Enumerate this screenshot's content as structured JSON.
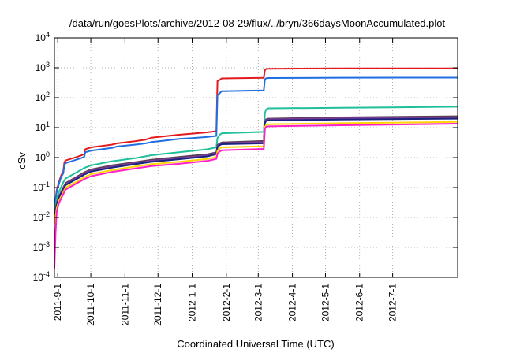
{
  "chart_data": {
    "type": "line",
    "title": "/data/run/goesPlots/archive/2012-08-29/flux/../bryn/366daysMoonAccumulated.plot",
    "xlabel": "Coordinated Universal Time (UTC)",
    "ylabel": "cSv",
    "yscale": "log",
    "ylim": [
      0.0001,
      10000
    ],
    "xlim": [
      "2011-08-29",
      "2012-08-29"
    ],
    "grid": true,
    "y_ticks": [
      {
        "value": 0.0001,
        "base": "10",
        "exp": "-4"
      },
      {
        "value": 0.001,
        "base": "10",
        "exp": "-3"
      },
      {
        "value": 0.01,
        "base": "10",
        "exp": "-2"
      },
      {
        "value": 0.1,
        "base": "10",
        "exp": "-1"
      },
      {
        "value": 1,
        "base": "10",
        "exp": "0"
      },
      {
        "value": 10,
        "base": "10",
        "exp": "1"
      },
      {
        "value": 100,
        "base": "10",
        "exp": "2"
      },
      {
        "value": 1000,
        "base": "10",
        "exp": "3"
      },
      {
        "value": 10000,
        "base": "10",
        "exp": "4"
      }
    ],
    "x_ticks": [
      "2011-9-1",
      "2011-10-1",
      "2011-11-1",
      "2011-12-1",
      "2012-1-1",
      "2012-2-1",
      "2012-3-1",
      "2012-4-1",
      "2012-5-1",
      "2012-6-1",
      "2012-7-1"
    ],
    "series": [
      {
        "color": "#e41a1c",
        "x": [
          "2011-08-29",
          "2011-08-31",
          "2011-09-02",
          "2011-09-04",
          "2011-09-06",
          "2011-09-07",
          "2011-09-08",
          "2011-09-20",
          "2011-09-25",
          "2011-09-26",
          "2011-10-01",
          "2011-10-20",
          "2011-10-25",
          "2011-11-10",
          "2011-11-20",
          "2011-11-25",
          "2011-12-10",
          "2011-12-20",
          "2012-01-01",
          "2012-01-15",
          "2012-01-23",
          "2012-01-24",
          "2012-01-26",
          "2012-01-27",
          "2012-01-28",
          "2012-03-06",
          "2012-03-07",
          "2012-03-08",
          "2012-03-10",
          "2012-05-15",
          "2012-08-29"
        ],
        "y": [
          0.02,
          0.08,
          0.15,
          0.25,
          0.35,
          0.7,
          0.8,
          1.1,
          1.3,
          1.9,
          2.2,
          2.7,
          3.0,
          3.5,
          4.0,
          4.6,
          5.3,
          5.8,
          6.3,
          7.0,
          7.6,
          360,
          390,
          420,
          440,
          460,
          830,
          900,
          930,
          950,
          960
        ]
      },
      {
        "color": "#1f6fe0",
        "x": [
          "2011-08-29",
          "2011-08-31",
          "2011-09-02",
          "2011-09-04",
          "2011-09-06",
          "2011-09-07",
          "2011-09-08",
          "2011-09-20",
          "2011-09-25",
          "2011-09-26",
          "2011-10-01",
          "2011-10-20",
          "2011-10-25",
          "2011-11-10",
          "2011-11-20",
          "2011-11-25",
          "2011-12-10",
          "2011-12-20",
          "2012-01-01",
          "2012-01-15",
          "2012-01-23",
          "2012-01-24",
          "2012-01-26",
          "2012-01-27",
          "2012-01-28",
          "2012-03-06",
          "2012-03-07",
          "2012-03-08",
          "2012-03-10",
          "2012-05-15",
          "2012-08-29"
        ],
        "y": [
          0.02,
          0.07,
          0.13,
          0.22,
          0.3,
          0.55,
          0.65,
          0.9,
          1.05,
          1.5,
          1.7,
          2.1,
          2.35,
          2.7,
          3.0,
          3.3,
          3.8,
          4.2,
          4.5,
          4.9,
          5.3,
          120,
          140,
          155,
          165,
          175,
          410,
          440,
          455,
          465,
          470
        ]
      },
      {
        "color": "#1fbf9a",
        "x": [
          "2011-08-29",
          "2011-08-31",
          "2011-09-02",
          "2011-09-06",
          "2011-09-08",
          "2011-09-20",
          "2011-09-25",
          "2011-10-01",
          "2011-10-20",
          "2011-11-10",
          "2011-11-25",
          "2011-12-20",
          "2012-01-15",
          "2012-01-23",
          "2012-01-24",
          "2012-01-26",
          "2012-01-28",
          "2012-03-06",
          "2012-03-07",
          "2012-03-08",
          "2012-03-10",
          "2012-05-15",
          "2012-08-29"
        ],
        "y": [
          0.015,
          0.04,
          0.07,
          0.15,
          0.2,
          0.35,
          0.45,
          0.55,
          0.75,
          0.95,
          1.2,
          1.5,
          1.9,
          2.2,
          4.5,
          5.8,
          6.5,
          7.2,
          30,
          40,
          44,
          46,
          50
        ]
      },
      {
        "color": "#5a3f4f",
        "x": [
          "2011-08-29",
          "2011-08-31",
          "2011-09-02",
          "2011-09-06",
          "2011-09-08",
          "2011-09-20",
          "2011-09-25",
          "2011-10-01",
          "2011-10-20",
          "2011-11-10",
          "2011-11-25",
          "2011-12-20",
          "2012-01-15",
          "2012-01-23",
          "2012-01-24",
          "2012-01-26",
          "2012-01-28",
          "2012-03-06",
          "2012-03-07",
          "2012-03-08",
          "2012-03-10",
          "2012-05-15",
          "2012-08-29"
        ],
        "y": [
          0.01,
          0.03,
          0.05,
          0.1,
          0.14,
          0.25,
          0.32,
          0.4,
          0.55,
          0.7,
          0.85,
          1.05,
          1.3,
          1.5,
          2.6,
          3.0,
          3.2,
          3.6,
          16,
          19,
          20,
          22,
          24
        ]
      },
      {
        "color": "#7a3b9a",
        "x": [
          "2011-08-29",
          "2011-08-31",
          "2011-09-02",
          "2011-09-06",
          "2011-09-08",
          "2011-09-20",
          "2011-09-25",
          "2011-10-01",
          "2011-10-20",
          "2011-11-10",
          "2011-11-25",
          "2011-12-20",
          "2012-01-15",
          "2012-01-23",
          "2012-01-24",
          "2012-01-26",
          "2012-01-28",
          "2012-03-06",
          "2012-03-07",
          "2012-03-08",
          "2012-03-10",
          "2012-05-15",
          "2012-08-29"
        ],
        "y": [
          0.009,
          0.028,
          0.048,
          0.095,
          0.13,
          0.23,
          0.3,
          0.37,
          0.5,
          0.65,
          0.78,
          0.95,
          1.2,
          1.4,
          2.4,
          2.8,
          3.0,
          3.3,
          15,
          18,
          19,
          20.5,
          22
        ]
      },
      {
        "color": "#1a237e",
        "x": [
          "2011-08-29",
          "2011-08-31",
          "2011-09-02",
          "2011-09-06",
          "2011-09-08",
          "2011-09-20",
          "2011-09-25",
          "2011-10-01",
          "2011-10-20",
          "2011-11-10",
          "2011-11-25",
          "2011-12-20",
          "2012-01-15",
          "2012-01-23",
          "2012-01-24",
          "2012-01-26",
          "2012-01-28",
          "2012-03-06",
          "2012-03-07",
          "2012-03-08",
          "2012-03-10",
          "2012-05-15",
          "2012-08-29"
        ],
        "y": [
          0.008,
          0.025,
          0.044,
          0.088,
          0.12,
          0.21,
          0.27,
          0.34,
          0.46,
          0.6,
          0.72,
          0.88,
          1.1,
          1.3,
          2.2,
          2.6,
          2.8,
          3.0,
          14,
          16.5,
          17.5,
          18.5,
          20
        ]
      },
      {
        "color": "#ffd400",
        "x": [
          "2011-08-29",
          "2011-08-31",
          "2011-09-02",
          "2011-09-06",
          "2011-09-08",
          "2011-09-20",
          "2011-09-25",
          "2011-10-01",
          "2011-10-20",
          "2011-11-10",
          "2011-11-25",
          "2011-12-20",
          "2012-01-15",
          "2012-01-23",
          "2012-01-24",
          "2012-01-26",
          "2012-01-28",
          "2012-03-06",
          "2012-03-07",
          "2012-03-08",
          "2012-03-10",
          "2012-05-15",
          "2012-08-29"
        ],
        "y": [
          0.006,
          0.02,
          0.036,
          0.07,
          0.1,
          0.17,
          0.22,
          0.28,
          0.38,
          0.5,
          0.6,
          0.72,
          0.9,
          1.05,
          1.7,
          2.0,
          2.2,
          2.4,
          10.5,
          12.2,
          13,
          14,
          15.5
        ]
      },
      {
        "color": "#ff1fc8",
        "x": [
          "2011-08-29",
          "2011-08-30",
          "2011-08-31",
          "2011-09-02",
          "2011-09-06",
          "2011-09-08",
          "2011-09-20",
          "2011-09-25",
          "2011-10-01",
          "2011-10-20",
          "2011-11-10",
          "2011-11-25",
          "2011-12-20",
          "2012-01-15",
          "2012-01-23",
          "2012-01-24",
          "2012-01-26",
          "2012-01-28",
          "2012-03-06",
          "2012-03-07",
          "2012-03-08",
          "2012-03-10",
          "2012-05-15",
          "2012-08-29"
        ],
        "y": [
          0.0002,
          0.003,
          0.015,
          0.03,
          0.06,
          0.085,
          0.15,
          0.19,
          0.24,
          0.33,
          0.43,
          0.52,
          0.62,
          0.78,
          0.9,
          1.35,
          1.6,
          1.75,
          1.95,
          9,
          10.5,
          11,
          12,
          13.5
        ]
      }
    ]
  }
}
